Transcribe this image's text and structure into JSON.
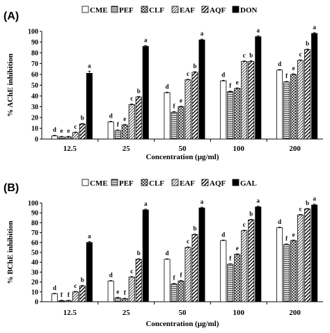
{
  "chart_data": [
    {
      "type": "bar",
      "panel_label": "(A)",
      "categories": [
        "12.5",
        "25",
        "50",
        "100",
        "200"
      ],
      "xlabel": "Concentration (µg/ml)",
      "ylabel": "% AChE inhibition",
      "ylim": [
        0,
        100
      ],
      "yticks": [
        0,
        10,
        20,
        30,
        40,
        50,
        60,
        70,
        80,
        90,
        100
      ],
      "legend_position": "top",
      "series": [
        {
          "name": "CME",
          "pattern": "white",
          "values": [
            3,
            16,
            43,
            54,
            64
          ],
          "errors": [
            0.5,
            0.5,
            0.5,
            0.5,
            0.5
          ],
          "letters": [
            "d",
            "d",
            "d",
            "d",
            "d"
          ]
        },
        {
          "name": "PEF",
          "pattern": "hlines",
          "values": [
            2,
            8,
            25,
            44,
            53
          ],
          "errors": [
            0.5,
            0.5,
            0.5,
            0.5,
            0.5
          ],
          "letters": [
            "e",
            "f",
            "f",
            "f",
            "f"
          ]
        },
        {
          "name": "CLF",
          "pattern": "crosshatch",
          "values": [
            2,
            13,
            30,
            47,
            60
          ],
          "errors": [
            0.5,
            0.5,
            0.5,
            0.5,
            0.5
          ],
          "letters": [
            "e",
            "e",
            "e",
            "e",
            "e"
          ]
        },
        {
          "name": "EAF",
          "pattern": "hatch",
          "values": [
            6,
            32,
            55,
            72,
            73
          ],
          "errors": [
            0.5,
            0.5,
            0.5,
            0.5,
            0.5
          ],
          "letters": [
            "c",
            "c",
            "c",
            "c",
            "c"
          ]
        },
        {
          "name": "AQF",
          "pattern": "dhatch",
          "values": [
            14,
            39,
            62,
            72,
            83
          ],
          "errors": [
            0.5,
            0.5,
            0.5,
            0.5,
            0.5
          ],
          "letters": [
            "b",
            "b",
            "b",
            "b",
            "b"
          ]
        },
        {
          "name": "DON",
          "pattern": "black",
          "values": [
            61,
            86,
            92,
            95,
            98
          ],
          "errors": [
            2,
            0.8,
            0.8,
            0.8,
            0.8
          ],
          "letters": [
            "a",
            "a",
            "a",
            "a",
            "a"
          ]
        }
      ]
    },
    {
      "type": "bar",
      "panel_label": "(B)",
      "categories": [
        "12.5",
        "25",
        "50",
        "100",
        "200"
      ],
      "xlabel": "Concentration (µg/ml)",
      "ylabel": "% BChE inhibition",
      "ylim": [
        0,
        100
      ],
      "yticks": [
        0,
        10,
        20,
        30,
        40,
        50,
        60,
        70,
        80,
        90,
        100
      ],
      "legend_position": "top",
      "series": [
        {
          "name": "CME",
          "pattern": "white",
          "values": [
            8,
            21,
            43,
            62,
            75
          ],
          "errors": [
            0.5,
            0.5,
            0.5,
            0.5,
            0.5
          ],
          "letters": [
            "d",
            "d",
            "d",
            "d",
            "d"
          ]
        },
        {
          "name": "PEF",
          "pattern": "hlines",
          "values": [
            1,
            4,
            18,
            38,
            58
          ],
          "errors": [
            0.5,
            0.5,
            0.5,
            0.5,
            0.5
          ],
          "letters": [
            "f",
            "e",
            "f",
            "f",
            "f"
          ]
        },
        {
          "name": "CLF",
          "pattern": "crosshatch",
          "values": [
            1,
            3,
            21,
            48,
            62
          ],
          "errors": [
            0.5,
            0.5,
            0.5,
            0.5,
            0.5
          ],
          "letters": [
            "f",
            "f",
            "f",
            "e",
            "e"
          ]
        },
        {
          "name": "EAF",
          "pattern": "hatch",
          "values": [
            10,
            25,
            55,
            72,
            88
          ],
          "errors": [
            0.5,
            0.5,
            0.5,
            0.5,
            0.5
          ],
          "letters": [
            "c",
            "c",
            "c",
            "c",
            "c"
          ]
        },
        {
          "name": "AQF",
          "pattern": "dhatch",
          "values": [
            16,
            43,
            68,
            83,
            94
          ],
          "errors": [
            0.5,
            0.5,
            0.5,
            0.5,
            0.5
          ],
          "letters": [
            "b",
            "b",
            "b",
            "b",
            "b"
          ]
        },
        {
          "name": "GAL",
          "pattern": "black",
          "values": [
            60,
            93,
            95,
            96,
            98
          ],
          "errors": [
            1,
            0.8,
            0.8,
            0.8,
            0.8
          ],
          "letters": [
            "a",
            "a",
            "a",
            "a",
            "a"
          ]
        }
      ]
    }
  ]
}
